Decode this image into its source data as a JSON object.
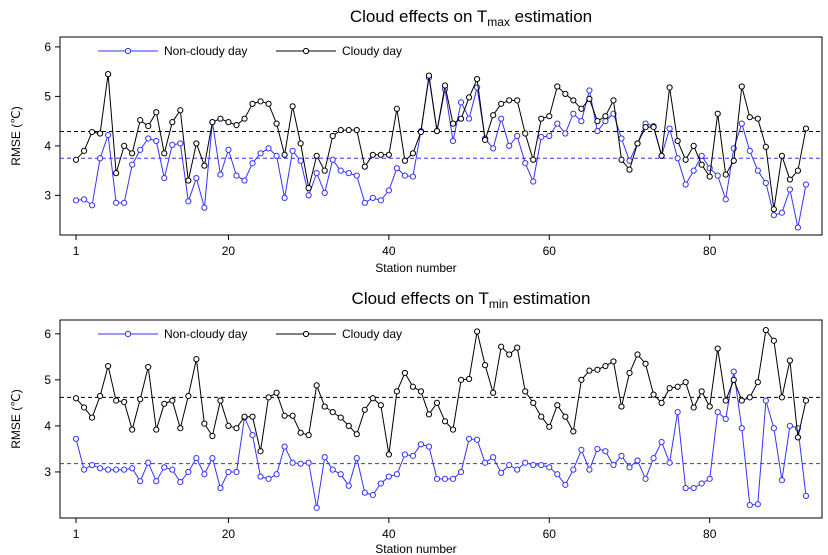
{
  "chart_data": [
    {
      "type": "line",
      "title": "Cloud effects on T",
      "title_sub": "max",
      "title_suffix": " estimation",
      "xlabel": "Station number",
      "ylabel": "RMSE (℃)",
      "xlim": [
        -1,
        94
      ],
      "ylim": [
        2.2,
        6.2
      ],
      "xticks": [
        1,
        20,
        40,
        60,
        80
      ],
      "yticks": [
        3,
        4,
        5,
        6
      ],
      "legend_position": "top-left",
      "reference_lines": [
        {
          "series": "Non-cloudy day",
          "y": 3.75
        },
        {
          "series": "Cloudy day",
          "y": 4.29
        }
      ],
      "series": [
        {
          "name": "Non-cloudy day",
          "color": "#3333ff",
          "values": [
            2.9,
            2.92,
            2.8,
            3.75,
            4.22,
            2.85,
            2.85,
            3.62,
            3.92,
            4.15,
            4.1,
            3.35,
            4.02,
            4.05,
            2.88,
            3.35,
            2.75,
            4.48,
            3.42,
            3.92,
            3.4,
            3.3,
            3.65,
            3.85,
            3.95,
            3.8,
            2.95,
            3.9,
            3.7,
            3.0,
            3.45,
            3.05,
            3.72,
            3.5,
            3.45,
            3.4,
            2.85,
            2.95,
            2.9,
            3.1,
            3.55,
            3.4,
            3.38,
            4.3,
            5.38,
            4.3,
            5.15,
            4.1,
            4.88,
            4.55,
            5.18,
            4.15,
            3.95,
            4.55,
            4.0,
            4.2,
            3.65,
            3.28,
            4.18,
            4.2,
            4.45,
            4.25,
            4.65,
            4.5,
            5.12,
            4.3,
            4.5,
            4.65,
            4.15,
            3.7,
            4.05,
            4.45,
            4.4,
            3.8,
            4.35,
            3.75,
            3.22,
            3.5,
            3.8,
            3.55,
            3.4,
            2.92,
            3.95,
            4.45,
            3.9,
            3.5,
            3.25,
            2.6,
            2.65,
            3.12,
            2.35,
            3.22
          ]
        },
        {
          "name": "Cloudy day",
          "color": "#000000",
          "values": [
            3.72,
            3.9,
            4.28,
            4.25,
            5.45,
            3.45,
            4.0,
            3.85,
            4.52,
            4.4,
            4.68,
            3.85,
            4.48,
            4.72,
            3.3,
            4.05,
            3.6,
            4.48,
            4.55,
            4.48,
            4.42,
            4.55,
            4.85,
            4.9,
            4.85,
            4.45,
            3.82,
            4.8,
            4.05,
            3.15,
            3.8,
            3.5,
            4.2,
            4.32,
            4.32,
            4.32,
            3.58,
            3.82,
            3.82,
            3.82,
            4.75,
            3.7,
            3.85,
            4.28,
            5.42,
            4.3,
            5.22,
            4.45,
            4.55,
            4.98,
            5.35,
            4.12,
            4.62,
            4.85,
            4.92,
            4.92,
            4.25,
            3.72,
            4.55,
            4.6,
            5.2,
            5.05,
            4.92,
            4.75,
            4.95,
            4.5,
            4.6,
            4.92,
            3.72,
            3.52,
            4.05,
            4.38,
            4.38,
            3.8,
            5.18,
            4.1,
            3.72,
            4.0,
            3.62,
            3.38,
            4.65,
            3.42,
            3.7,
            5.2,
            4.58,
            4.55,
            3.98,
            2.72,
            3.8,
            3.32,
            3.5,
            4.35
          ]
        }
      ]
    },
    {
      "type": "line",
      "title": "Cloud effects on T",
      "title_sub": "min",
      "title_suffix": " estimation",
      "xlabel": "Station number",
      "ylabel": "RMSE (℃)",
      "xlim": [
        -1,
        94
      ],
      "ylim": [
        2.0,
        6.3
      ],
      "xticks": [
        1,
        20,
        40,
        60,
        80
      ],
      "yticks": [
        3,
        4,
        5,
        6
      ],
      "legend_position": "top-left",
      "reference_lines": [
        {
          "series": "Non-cloudy day",
          "y": 3.18
        },
        {
          "series": "Cloudy day",
          "y": 4.62
        }
      ],
      "series": [
        {
          "name": "Non-cloudy day",
          "color": "#3333ff",
          "values": [
            3.72,
            3.05,
            3.15,
            3.08,
            3.05,
            3.05,
            3.05,
            3.08,
            2.8,
            3.2,
            2.8,
            3.1,
            3.05,
            2.78,
            3.0,
            3.3,
            2.95,
            3.3,
            2.65,
            3.0,
            3.0,
            4.18,
            3.8,
            2.9,
            2.85,
            2.95,
            3.55,
            3.2,
            3.18,
            3.2,
            2.22,
            3.32,
            3.05,
            2.95,
            2.7,
            3.3,
            2.55,
            2.5,
            2.75,
            2.9,
            2.95,
            3.38,
            3.35,
            3.6,
            3.55,
            2.85,
            2.85,
            2.85,
            3.0,
            3.72,
            3.7,
            3.2,
            3.32,
            2.98,
            3.15,
            3.05,
            3.2,
            3.15,
            3.15,
            3.1,
            2.95,
            2.72,
            3.05,
            3.48,
            3.05,
            3.5,
            3.45,
            3.15,
            3.35,
            3.1,
            3.25,
            2.85,
            3.3,
            3.65,
            3.2,
            4.3,
            2.65,
            2.65,
            2.75,
            2.85,
            4.3,
            4.15,
            5.18,
            3.95,
            2.28,
            2.3,
            4.55,
            3.95,
            2.82,
            4.0,
            3.95,
            2.48
          ]
        },
        {
          "name": "Cloudy day",
          "color": "#000000",
          "values": [
            4.6,
            4.4,
            4.18,
            4.65,
            5.3,
            4.55,
            4.52,
            3.92,
            4.58,
            5.28,
            3.92,
            4.48,
            4.55,
            3.95,
            4.65,
            5.45,
            4.05,
            3.78,
            4.55,
            4.0,
            3.95,
            4.2,
            4.2,
            3.45,
            4.62,
            4.72,
            4.22,
            4.22,
            3.85,
            3.8,
            4.88,
            4.42,
            4.3,
            4.18,
            4.0,
            3.82,
            4.35,
            4.6,
            4.45,
            3.38,
            4.75,
            5.15,
            4.85,
            4.75,
            4.25,
            4.5,
            4.1,
            3.92,
            5.0,
            5.02,
            6.05,
            5.32,
            4.72,
            5.72,
            5.55,
            5.7,
            4.75,
            4.5,
            4.2,
            3.98,
            4.45,
            4.2,
            3.88,
            5.0,
            5.2,
            5.22,
            5.3,
            5.4,
            4.42,
            5.15,
            5.55,
            5.35,
            4.68,
            4.5,
            4.82,
            4.85,
            4.95,
            4.4,
            4.75,
            4.42,
            5.68,
            4.55,
            5.0,
            4.55,
            4.62,
            4.95,
            6.08,
            5.85,
            4.62,
            5.42,
            3.75,
            4.55
          ]
        }
      ]
    }
  ]
}
